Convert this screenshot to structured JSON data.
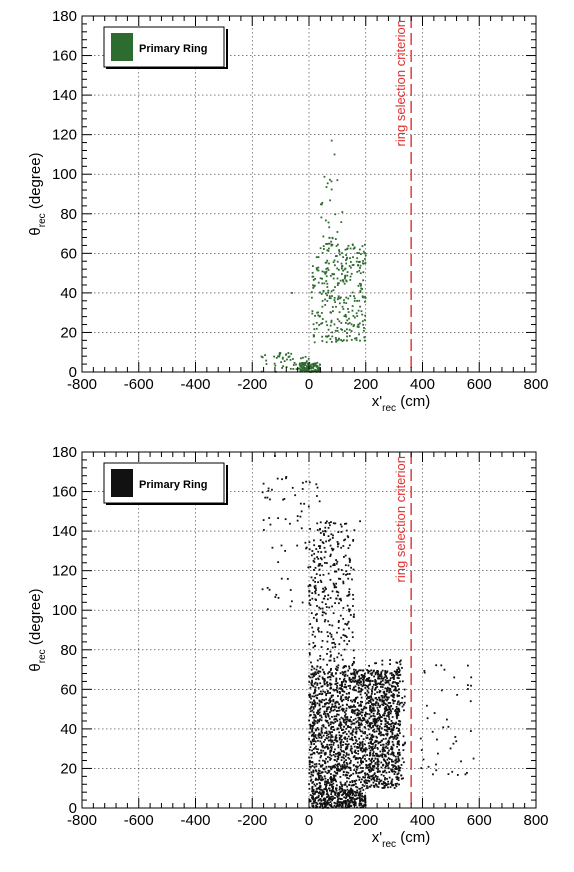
{
  "chart_data": [
    {
      "type": "scatter",
      "xlim": [
        -800,
        800
      ],
      "ylim": [
        0,
        180
      ],
      "xticks": [
        "-800",
        "-600",
        "-400",
        "-200",
        "0",
        "200",
        "400",
        "600",
        "800"
      ],
      "yticks": [
        "0",
        "20",
        "40",
        "60",
        "80",
        "100",
        "120",
        "140",
        "160",
        "180"
      ],
      "grid": true,
      "xlabel": {
        "main": "x'",
        "sub": "rec",
        "unit": " (cm)"
      },
      "ylabel": {
        "main": "θ",
        "sub": "rec",
        "unit": " (degree)"
      },
      "legend": {
        "label": "Primary Ring",
        "position": "top-left"
      },
      "marker_color": "#2e6b2e",
      "annotation": {
        "text": "ring selection criterion",
        "x": 360,
        "color": "#e03030",
        "style": "dashed-vertical"
      },
      "series": [
        {
          "name": "Primary Ring",
          "clusters": [
            {
              "x": [
                -170,
                0
              ],
              "y": [
                0,
                10
              ],
              "n": 50
            },
            {
              "x": [
                -40,
                40
              ],
              "y": [
                0,
                5
              ],
              "n": 110
            },
            {
              "x": [
                10,
                200
              ],
              "y": [
                15,
                65
              ],
              "n": 320
            },
            {
              "x": [
                40,
                120
              ],
              "y": [
                65,
                100
              ],
              "n": 25
            }
          ],
          "points": [
            [
              80,
              117
            ],
            [
              90,
              110
            ],
            [
              100,
              97
            ],
            [
              -60,
              40
            ],
            [
              200,
              59
            ],
            [
              190,
              55
            ],
            [
              175,
              24
            ],
            [
              20,
              15
            ]
          ]
        }
      ]
    },
    {
      "type": "scatter",
      "xlim": [
        -800,
        800
      ],
      "ylim": [
        0,
        180
      ],
      "xticks": [
        "-800",
        "-600",
        "-400",
        "-200",
        "0",
        "200",
        "400",
        "600",
        "800"
      ],
      "yticks": [
        "0",
        "20",
        "40",
        "60",
        "80",
        "100",
        "120",
        "140",
        "160",
        "180"
      ],
      "grid": true,
      "xlabel": {
        "main": "x'",
        "sub": "rec",
        "unit": " (cm)"
      },
      "ylabel": {
        "main": "θ",
        "sub": "rec",
        "unit": " (degree)"
      },
      "legend": {
        "label": "Primary Ring",
        "position": "top-left"
      },
      "marker_color": "#111111",
      "annotation": {
        "text": "ring selection criterion",
        "x": 360,
        "color": "#e03030",
        "style": "dashed-vertical"
      },
      "series": [
        {
          "name": "Primary Ring",
          "clusters": [
            {
              "x": [
                0,
                200
              ],
              "y": [
                0,
                10
              ],
              "n": 380
            },
            {
              "x": [
                0,
                320
              ],
              "y": [
                10,
                70
              ],
              "n": 1900
            },
            {
              "x": [
                0,
                160
              ],
              "y": [
                70,
                145
              ],
              "n": 320
            },
            {
              "x": [
                -170,
                40
              ],
              "y": [
                100,
                168
              ],
              "n": 70
            },
            {
              "x": [
                200,
                340
              ],
              "y": [
                10,
                75
              ],
              "n": 180
            },
            {
              "x": [
                380,
                580
              ],
              "y": [
                15,
                75
              ],
              "n": 40
            }
          ],
          "points": [
            [
              -120,
              178
            ],
            [
              -10,
              165
            ],
            [
              30,
              162
            ],
            [
              -160,
              164
            ],
            [
              180,
              145
            ],
            [
              560,
              72
            ],
            [
              570,
              54
            ],
            [
              580,
              25
            ]
          ]
        }
      ]
    }
  ]
}
